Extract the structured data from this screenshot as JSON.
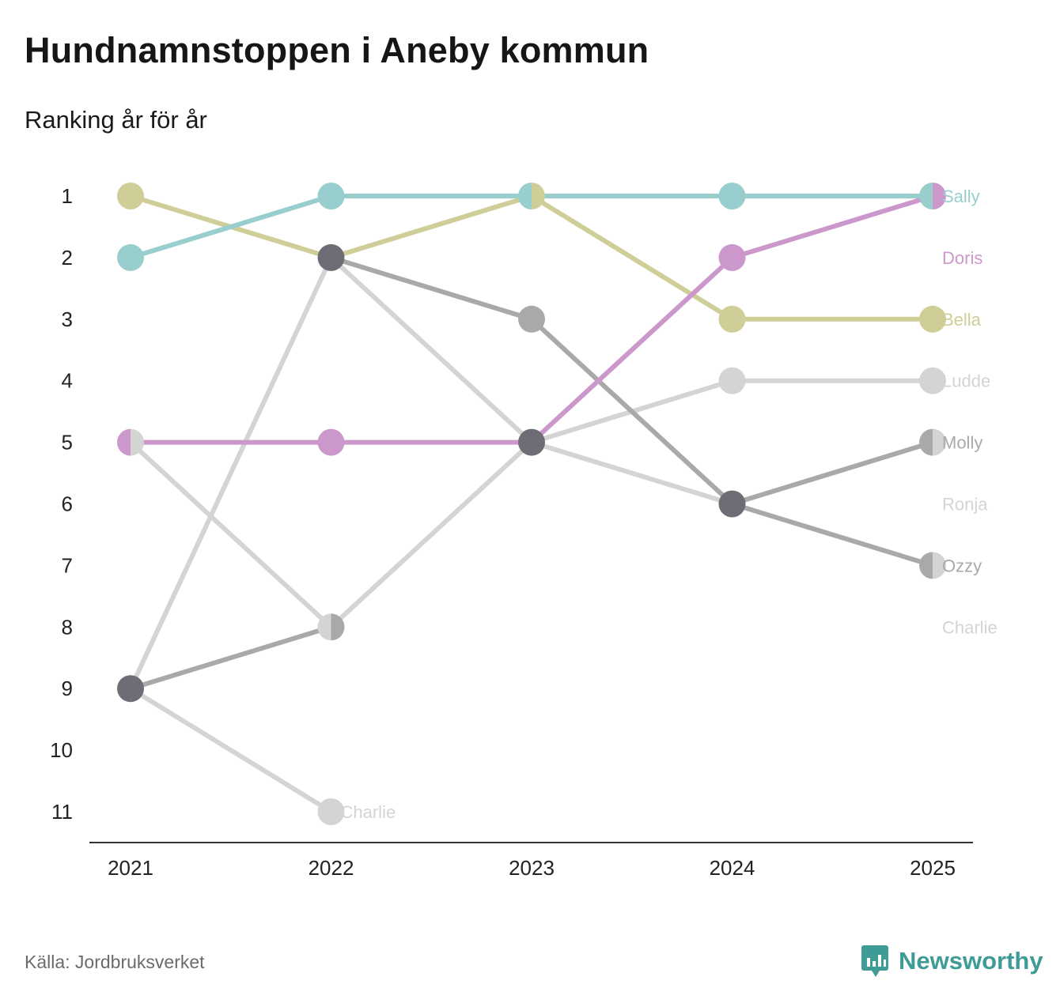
{
  "title": "Hundnamnstoppen i Aneby kommun",
  "subtitle": "Ranking år för år",
  "source": "Källa: Jordbruksverket",
  "brand": {
    "name": "Newsworthy",
    "icon": "newsworthy-logo-icon",
    "color": "#3e9b95"
  },
  "chart_data": {
    "type": "line",
    "subtype": "bump",
    "title": "Hundnamnstoppen i Aneby kommun",
    "subtitle": "Ranking år för år",
    "x": [
      "2021",
      "2022",
      "2023",
      "2024",
      "2025"
    ],
    "ylabel": "",
    "y_ticks": [
      "1",
      "2",
      "3",
      "4",
      "5",
      "6",
      "7",
      "8",
      "9",
      "10",
      "11"
    ],
    "ylim": [
      1,
      11
    ],
    "y_inverted": true,
    "series": [
      {
        "name": "Charlie",
        "color": "#d4d4d4",
        "values": [
          9,
          11,
          null,
          null,
          null
        ],
        "label": "Charlie"
      },
      {
        "name": "Ronja",
        "color": "#d4d4d4",
        "values": [
          5,
          8,
          5,
          6,
          null
        ],
        "label": "Ronja"
      },
      {
        "name": "Ludde",
        "color": "#d4d4d4",
        "values": [
          9,
          2,
          5,
          4,
          4
        ],
        "label": "Ludde"
      },
      {
        "name": "Ozzy",
        "color": "#a9a9a9",
        "values": [
          null,
          2,
          3,
          6,
          7
        ],
        "label": "Ozzy"
      },
      {
        "name": "Molly",
        "color": "#a9a9a9",
        "values": [
          9,
          8,
          null,
          6,
          5
        ],
        "label": "Molly"
      },
      {
        "name": "Bella",
        "color": "#cfcd98",
        "values": [
          1,
          2,
          1,
          3,
          3
        ],
        "label": "Bella"
      },
      {
        "name": "Doris",
        "color": "#cc98cc",
        "values": [
          5,
          5,
          5,
          2,
          1
        ],
        "label": "Doris"
      },
      {
        "name": "Sally",
        "color": "#98cecd",
        "values": [
          2,
          1,
          1,
          1,
          1
        ],
        "label": "Sally"
      }
    ],
    "points": [
      {
        "x": "2021",
        "y": 1,
        "colors": [
          "#cfcd98"
        ]
      },
      {
        "x": "2021",
        "y": 2,
        "colors": [
          "#98cecd"
        ]
      },
      {
        "x": "2021",
        "y": 5,
        "colors": [
          "#cc98cc",
          "#d4d4d4"
        ]
      },
      {
        "x": "2021",
        "y": 9,
        "colors": [
          "#6e6d75"
        ]
      },
      {
        "x": "2022",
        "y": 1,
        "colors": [
          "#98cecd"
        ]
      },
      {
        "x": "2022",
        "y": 2,
        "colors": [
          "#6e6d75"
        ]
      },
      {
        "x": "2022",
        "y": 5,
        "colors": [
          "#cc98cc"
        ]
      },
      {
        "x": "2022",
        "y": 8,
        "colors": [
          "#d4d4d4",
          "#a9a9a9"
        ]
      },
      {
        "x": "2022",
        "y": 11,
        "colors": [
          "#d4d4d4"
        ]
      },
      {
        "x": "2023",
        "y": 1,
        "colors": [
          "#98cecd",
          "#cfcd98"
        ]
      },
      {
        "x": "2023",
        "y": 3,
        "colors": [
          "#a9a9a9"
        ]
      },
      {
        "x": "2023",
        "y": 5,
        "colors": [
          "#6e6d75"
        ]
      },
      {
        "x": "2024",
        "y": 1,
        "colors": [
          "#98cecd"
        ]
      },
      {
        "x": "2024",
        "y": 2,
        "colors": [
          "#cc98cc"
        ]
      },
      {
        "x": "2024",
        "y": 3,
        "colors": [
          "#cfcd98"
        ]
      },
      {
        "x": "2024",
        "y": 4,
        "colors": [
          "#d4d4d4"
        ]
      },
      {
        "x": "2024",
        "y": 6,
        "colors": [
          "#6e6d75"
        ]
      },
      {
        "x": "2025",
        "y": 1,
        "colors": [
          "#98cecd",
          "#cc98cc"
        ]
      },
      {
        "x": "2025",
        "y": 3,
        "colors": [
          "#cfcd98"
        ]
      },
      {
        "x": "2025",
        "y": 4,
        "colors": [
          "#d4d4d4"
        ]
      },
      {
        "x": "2025",
        "y": 5,
        "colors": [
          "#a9a9a9",
          "#d4d4d4"
        ]
      },
      {
        "x": "2025",
        "y": 7,
        "colors": [
          "#a9a9a9",
          "#d4d4d4"
        ]
      }
    ],
    "end_labels": [
      {
        "text": "Sally",
        "x": "2025",
        "y": 1,
        "color": "#98cecd"
      },
      {
        "text": "Doris",
        "x": "2025",
        "y": 2,
        "color": "#cc98cc"
      },
      {
        "text": "Bella",
        "x": "2025",
        "y": 3,
        "color": "#cfcd98"
      },
      {
        "text": "Ludde",
        "x": "2025",
        "y": 4,
        "color": "#d4d4d4"
      },
      {
        "text": "Molly",
        "x": "2025",
        "y": 5,
        "color": "#a9a9a9"
      },
      {
        "text": "Ronja",
        "x": "2025",
        "y": 6,
        "color": "#d4d4d4"
      },
      {
        "text": "Ozzy",
        "x": "2025",
        "y": 7,
        "color": "#a9a9a9"
      },
      {
        "text": "Charlie",
        "x": "2025",
        "y": 8,
        "color": "#d4d4d4"
      },
      {
        "text": "Charlie",
        "x": "2022",
        "y": 11,
        "color": "#d4d4d4"
      }
    ]
  }
}
